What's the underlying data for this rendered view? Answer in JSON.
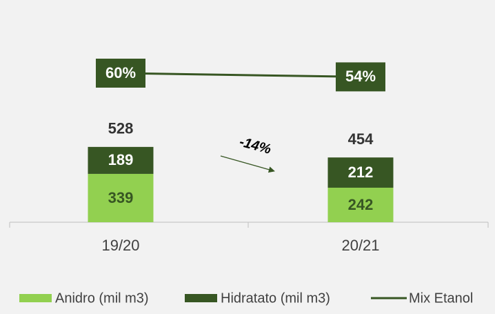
{
  "chart_data": {
    "type": "bar",
    "categories": [
      "19/20",
      "20/21"
    ],
    "series": [
      {
        "name": "Anidro (mil m3)",
        "color": "#92d050",
        "values": [
          339,
          242
        ]
      },
      {
        "name": "Hidratato (mil m3)",
        "color": "#375623",
        "values": [
          189,
          212
        ]
      },
      {
        "name": "Mix Etanol",
        "color": "#375623",
        "type": "line",
        "axis": "y2",
        "values": [
          60,
          54
        ],
        "value_labels": [
          "60%",
          "54%"
        ]
      }
    ],
    "totals": [
      528,
      454
    ],
    "annotation": "-14%",
    "ylim": [
      0,
      600
    ],
    "y2lim": [
      0,
      100
    ],
    "legend": "bottom"
  }
}
